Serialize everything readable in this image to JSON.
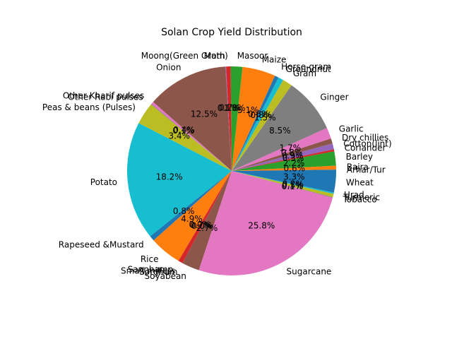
{
  "chart_data": {
    "type": "pie",
    "title": "Solan Crop Yield Distribution",
    "start_angle_deg": 0,
    "direction": "counterclockwise",
    "slices": [
      {
        "label": "Arhar/Tur",
        "value": 0.2,
        "pct_label": "",
        "color": "#1f77b4"
      },
      {
        "label": "Bajra",
        "value": 0.6,
        "pct_label": "0.6%",
        "color": "#ff7f0e"
      },
      {
        "label": "Barley",
        "value": 2.2,
        "pct_label": "2.2%",
        "color": "#2ca02c"
      },
      {
        "label": "Coriander",
        "value": 0.3,
        "pct_label": "0.3%",
        "color": "#d62728"
      },
      {
        "label": "Cotton(lint)",
        "value": 0.9,
        "pct_label": "0.9%",
        "color": "#9467bd"
      },
      {
        "label": "Dry chillies",
        "value": 0.8,
        "pct_label": "0.8%",
        "color": "#8c564b"
      },
      {
        "label": "Garlic",
        "value": 1.7,
        "pct_label": "1.7%",
        "color": "#e377c2"
      },
      {
        "label": "Ginger",
        "value": 8.5,
        "pct_label": "8.5%",
        "color": "#7f7f7f"
      },
      {
        "label": "Gram",
        "value": 1.5,
        "pct_label": "1.5%",
        "color": "#bcbd22"
      },
      {
        "label": "Groundnut",
        "value": 0.8,
        "pct_label": "0.8%",
        "color": "#17becf"
      },
      {
        "label": "Horse-gram",
        "value": 0.6,
        "pct_label": "0.6%",
        "color": "#1f77b4"
      },
      {
        "label": "Maize",
        "value": 5.1,
        "pct_label": "5.1%",
        "color": "#ff7f0e"
      },
      {
        "label": "Masoor",
        "value": 1.8,
        "pct_label": "1.8%",
        "color": "#2ca02c"
      },
      {
        "label": "Moong(Green Gram)",
        "value": 0.7,
        "pct_label": "0.7%",
        "color": "#d62728"
      },
      {
        "label": "Moth",
        "value": 0.1,
        "pct_label": "0.1%",
        "color": "#9467bd"
      },
      {
        "label": "Onion",
        "value": 12.5,
        "pct_label": "12.5%",
        "color": "#8c564b"
      },
      {
        "label": "Other Kharif pulses",
        "value": 0.4,
        "pct_label": "0.4%",
        "color": "#e377c2"
      },
      {
        "label": "Other Rabi pulses",
        "value": 0.1,
        "pct_label": "0.1%",
        "color": "#7f7f7f"
      },
      {
        "label": "Peas & beans (Pulses)",
        "value": 3.4,
        "pct_label": "3.4%",
        "color": "#bcbd22"
      },
      {
        "label": "Potato",
        "value": 18.2,
        "pct_label": "18.2%",
        "color": "#17becf"
      },
      {
        "label": "Rapeseed &Mustard",
        "value": 0.8,
        "pct_label": "0.8%",
        "color": "#1f77b4"
      },
      {
        "label": "Rice",
        "value": 4.9,
        "pct_label": "4.9%",
        "color": "#ff7f0e"
      },
      {
        "label": "Sannhamp",
        "value": 0.0,
        "pct_label": "0.0%",
        "color": "#2ca02c"
      },
      {
        "label": "Small millets",
        "value": 0.7,
        "pct_label": "0.7%",
        "color": "#d62728"
      },
      {
        "label": "Sorghum",
        "value": 0.0,
        "pct_label": "0.0%",
        "color": "#9467bd"
      },
      {
        "label": "Soyabean",
        "value": 2.7,
        "pct_label": "2.7%",
        "color": "#8c564b"
      },
      {
        "label": "Sugarcane",
        "value": 25.8,
        "pct_label": "25.8%",
        "color": "#e377c2"
      },
      {
        "label": "Tobacco",
        "value": 0.1,
        "pct_label": "0.1%",
        "color": "#7f7f7f"
      },
      {
        "label": "Turmeric",
        "value": 0.5,
        "pct_label": "0.5%",
        "color": "#bcbd22"
      },
      {
        "label": "Urad",
        "value": 0.2,
        "pct_label": "0.2%",
        "color": "#17becf"
      },
      {
        "label": "Wheat",
        "value": 3.3,
        "pct_label": "3.3%",
        "color": "#1f77b4"
      }
    ]
  }
}
